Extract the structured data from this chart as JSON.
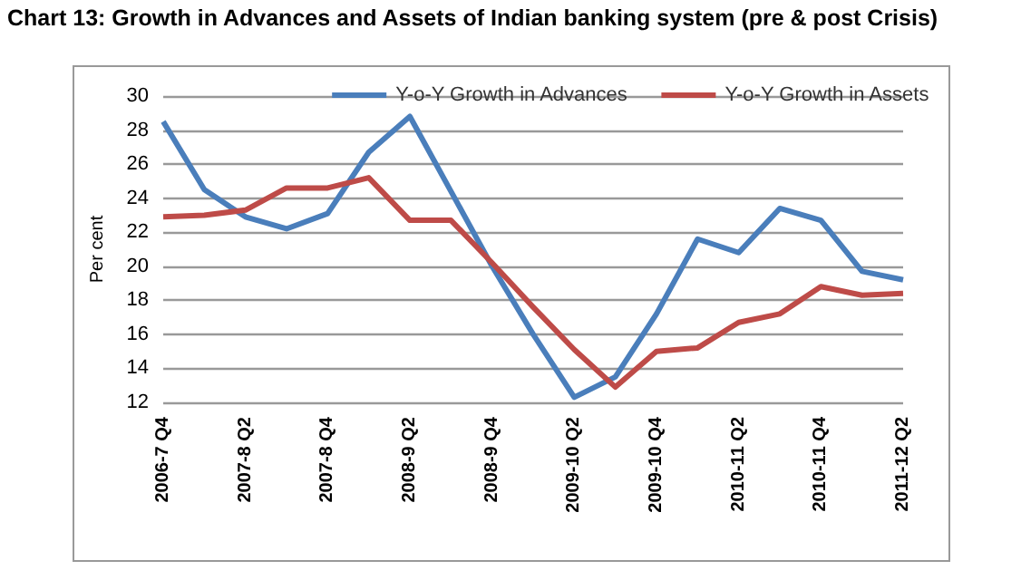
{
  "chart_data": {
    "type": "line",
    "title": "Chart 13: Growth in Advances and Assets of Indian banking system (pre & post Crisis)",
    "ylabel": "Per cent",
    "categories": [
      "2006-7 Q4",
      null,
      "2007-8 Q2",
      null,
      "2007-8 Q4",
      null,
      "2008-9 Q2",
      null,
      "2008-9 Q4",
      null,
      "2009-10 Q2",
      null,
      "2009-10 Q4",
      null,
      "2010-11 Q2",
      null,
      "2010-11 Q4",
      null,
      "2011-12 Q2"
    ],
    "series": [
      {
        "name": "Y-o-Y Growth in Advances",
        "color": "#4a7ebb",
        "values": [
          28.5,
          24.5,
          22.9,
          22.2,
          23.1,
          26.7,
          28.8,
          24.4,
          20.0,
          16.0,
          12.3,
          13.5,
          17.2,
          21.6,
          20.8,
          23.4,
          22.7,
          19.7,
          19.2
        ]
      },
      {
        "name": "Y-o-Y Growth in Assets",
        "color": "#be4b48",
        "values": [
          22.9,
          23.0,
          23.3,
          24.6,
          24.6,
          25.2,
          22.7,
          22.7,
          20.2,
          17.6,
          15.1,
          12.9,
          15.0,
          15.2,
          16.7,
          17.2,
          18.8,
          18.3,
          18.4
        ]
      }
    ],
    "ylim": [
      12,
      30
    ],
    "yticks": [
      12,
      14,
      16,
      18,
      20,
      22,
      24,
      26,
      28,
      30
    ],
    "grid": "y",
    "legend": "top right",
    "marker": "none",
    "line_style": "solid"
  }
}
